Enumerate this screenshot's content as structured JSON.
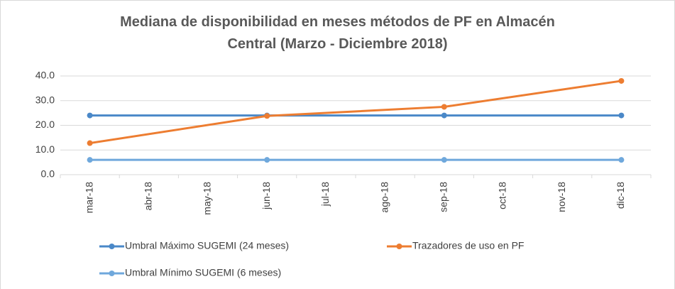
{
  "chart_data": {
    "type": "line",
    "title": "Mediana de disponibilidad en meses métodos de PF en Almacén Central (Marzo - Diciembre 2018)",
    "categories": [
      "mar-18",
      "abr-18",
      "may-18",
      "jun-18",
      "jul-18",
      "ago-18",
      "sep-18",
      "oct-18",
      "nov-18",
      "dic-18"
    ],
    "series": [
      {
        "name": "Umbral Máximo SUGEMI (24 meses)",
        "color": "#4a88c8",
        "values": [
          24,
          null,
          null,
          24,
          null,
          null,
          24,
          null,
          null,
          24
        ]
      },
      {
        "name": "Trazadores de uso en PF",
        "color": "#ed7d31",
        "values": [
          12.8,
          null,
          null,
          23.8,
          null,
          null,
          27.5,
          null,
          null,
          38.0
        ]
      },
      {
        "name": "Umbral Mínimo SUGEMI (6 meses)",
        "color": "#6fa8dc",
        "values": [
          6,
          null,
          null,
          6,
          null,
          null,
          6,
          null,
          null,
          6
        ]
      }
    ],
    "connect_gaps": true,
    "ylim": [
      0,
      40
    ],
    "yticks": [
      {
        "value": 0,
        "label": "0.0"
      },
      {
        "value": 10,
        "label": "10.0"
      },
      {
        "value": 20,
        "label": "20.0"
      },
      {
        "value": 30,
        "label": "30.0"
      },
      {
        "value": 40,
        "label": "40.0"
      }
    ],
    "grid": true
  }
}
